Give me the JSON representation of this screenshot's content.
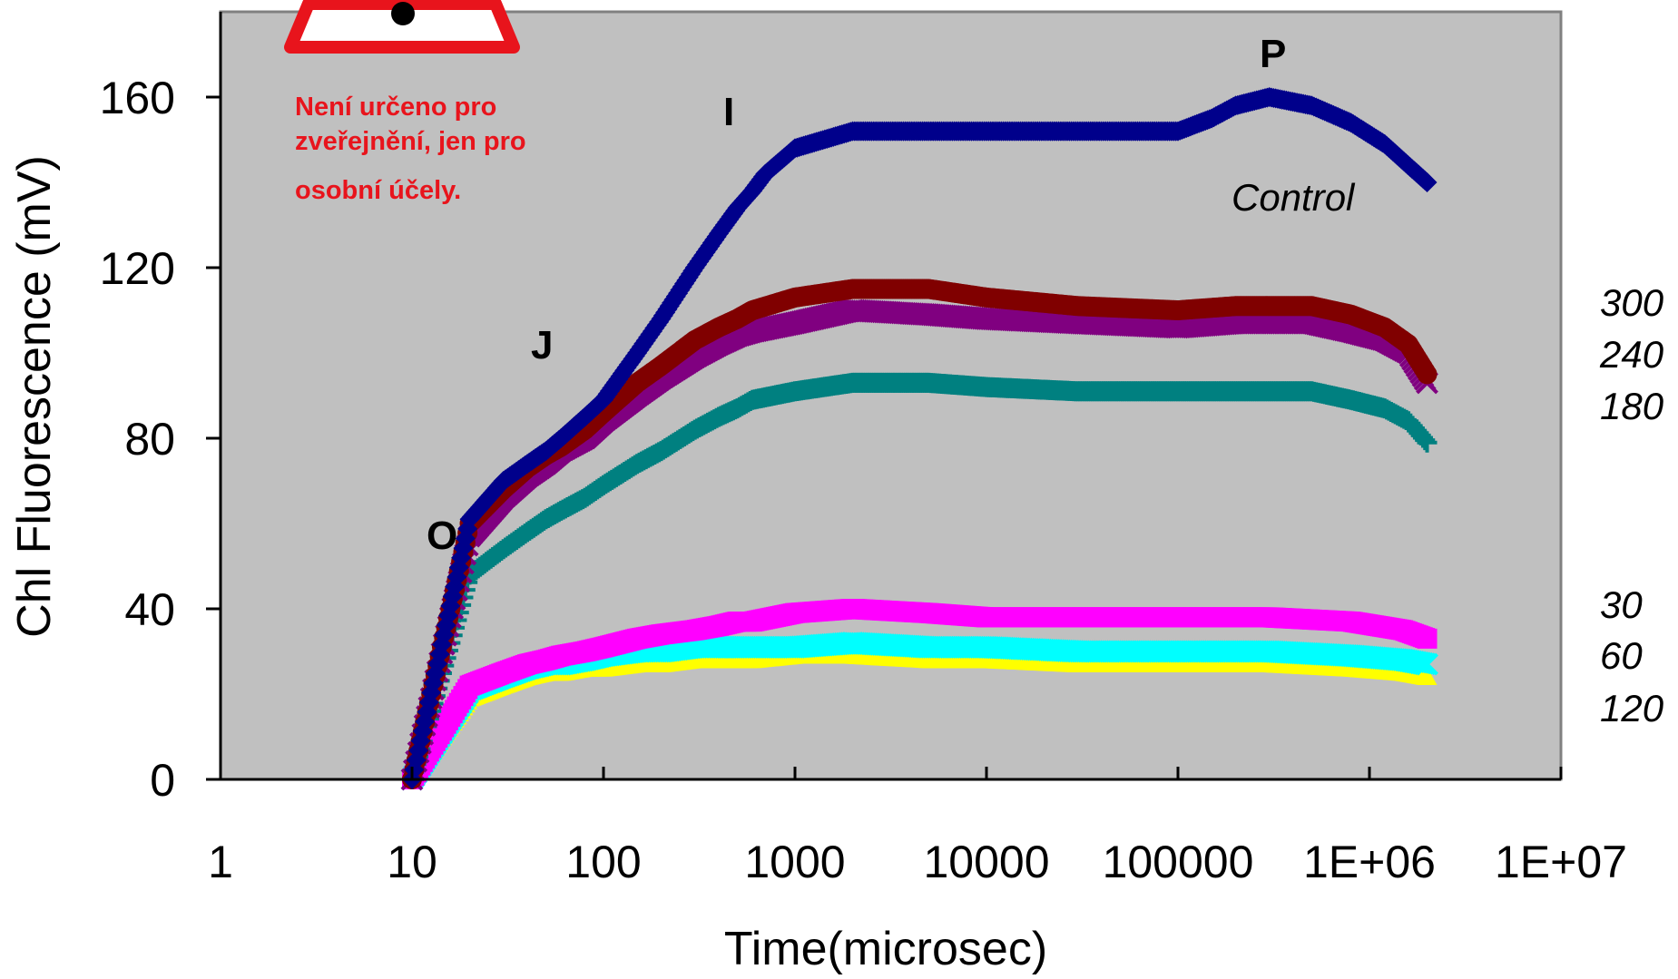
{
  "chart_data": {
    "type": "line",
    "title": "",
    "xlabel": "Time(microsec)",
    "ylabel": "Chl Fluorescence (mV)",
    "x_scale": "log",
    "xlim": [
      1,
      10000000
    ],
    "ylim": [
      0,
      180
    ],
    "x_ticks": [
      1,
      10,
      100,
      1000,
      10000,
      100000,
      1000000,
      10000000
    ],
    "x_tick_labels": [
      "1",
      "10",
      "100",
      "1000",
      "10000",
      "100000",
      "1E+06",
      "1E+07"
    ],
    "y_ticks": [
      0,
      40,
      80,
      120,
      160
    ],
    "y_tick_labels": [
      "0",
      "40",
      "80",
      "120",
      "160"
    ],
    "grid": false,
    "plot_background": "#c0c0c0",
    "phase_labels": [
      {
        "text": "O",
        "x": 12,
        "y": 57
      },
      {
        "text": "J",
        "x": 40,
        "y": 101
      },
      {
        "text": "I",
        "x": 450,
        "y": 156
      },
      {
        "text": "P",
        "x": 300000,
        "y": 169
      }
    ],
    "series": [
      {
        "name": "Control",
        "color": "#00008b",
        "marker": "diamond",
        "x": [
          10,
          20,
          30,
          40,
          50,
          60,
          80,
          100,
          150,
          200,
          300,
          400,
          500,
          600,
          700,
          1000,
          2000,
          5000,
          10000,
          30000,
          100000,
          150000,
          200000,
          300000,
          500000,
          800000,
          1200000,
          2000000
        ],
        "y": [
          0,
          61,
          70,
          74,
          77,
          80,
          85,
          89,
          100,
          108,
          120,
          128,
          134,
          138,
          142,
          148,
          152,
          152,
          152,
          152,
          152,
          155,
          158,
          160,
          158,
          154,
          149,
          140
        ]
      },
      {
        "name": "300",
        "color": "#800000",
        "marker": "circle",
        "x": [
          10,
          20,
          30,
          40,
          50,
          60,
          80,
          100,
          150,
          200,
          300,
          400,
          500,
          600,
          1000,
          2000,
          5000,
          10000,
          30000,
          100000,
          200000,
          500000,
          800000,
          1200000,
          1600000,
          2000000
        ],
        "y": [
          0,
          60,
          68,
          73,
          76,
          78,
          82,
          86,
          93,
          97,
          103,
          106,
          108,
          110,
          113,
          115,
          115,
          113,
          111,
          110,
          111,
          111,
          109,
          106,
          102,
          95
        ]
      },
      {
        "name": "240",
        "color": "#800080",
        "marker": "x",
        "x": [
          10,
          20,
          30,
          40,
          50,
          60,
          80,
          100,
          150,
          200,
          300,
          400,
          500,
          600,
          1000,
          2000,
          5000,
          10000,
          30000,
          100000,
          200000,
          500000,
          800000,
          1200000,
          1600000,
          2000000
        ],
        "y": [
          0,
          57,
          66,
          71,
          74,
          77,
          80,
          84,
          90,
          94,
          99,
          102,
          104,
          105,
          107,
          110,
          109,
          108,
          107,
          106,
          107,
          107,
          105,
          103,
          100,
          93
        ]
      },
      {
        "name": "180",
        "color": "#008080",
        "marker": "plus",
        "x": [
          10,
          20,
          30,
          40,
          50,
          60,
          80,
          100,
          150,
          200,
          300,
          400,
          500,
          600,
          1000,
          2000,
          5000,
          10000,
          30000,
          100000,
          200000,
          500000,
          800000,
          1200000,
          1600000,
          2000000
        ],
        "y": [
          0,
          48,
          54,
          58,
          61,
          63,
          66,
          69,
          74,
          77,
          82,
          85,
          87,
          89,
          91,
          93,
          93,
          92,
          91,
          91,
          91,
          91,
          89,
          87,
          84,
          79
        ]
      },
      {
        "name": "30",
        "color": "#ff00ff",
        "marker": "square",
        "x": [
          10,
          20,
          30,
          40,
          50,
          60,
          80,
          100,
          150,
          200,
          300,
          400,
          500,
          600,
          1000,
          2000,
          5000,
          10000,
          30000,
          100000,
          300000,
          800000,
          1500000,
          2000000
        ],
        "y": [
          0,
          22,
          25,
          27,
          28,
          29,
          30,
          31,
          33,
          34,
          35,
          36,
          37,
          37,
          39,
          40,
          39,
          38,
          38,
          38,
          38,
          37,
          35,
          33
        ]
      },
      {
        "name": "60",
        "color": "#00ffff",
        "marker": "x",
        "x": [
          10,
          20,
          30,
          40,
          50,
          60,
          80,
          100,
          150,
          200,
          300,
          400,
          500,
          600,
          1000,
          2000,
          5000,
          10000,
          30000,
          100000,
          300000,
          800000,
          1500000,
          2000000
        ],
        "y": [
          0,
          21,
          24,
          26,
          27,
          27,
          28,
          29,
          30,
          30,
          31,
          31,
          31,
          31,
          31,
          32,
          31,
          31,
          30,
          30,
          30,
          29,
          28,
          27
        ]
      },
      {
        "name": "120",
        "color": "#ffff00",
        "marker": "triangle",
        "x": [
          10,
          20,
          30,
          40,
          50,
          60,
          80,
          100,
          150,
          200,
          300,
          400,
          500,
          600,
          1000,
          2000,
          5000,
          10000,
          30000,
          100000,
          300000,
          800000,
          1500000,
          2000000
        ],
        "y": [
          0,
          19,
          22,
          24,
          25,
          25,
          26,
          26,
          27,
          27,
          28,
          28,
          28,
          28,
          29,
          29,
          28,
          28,
          27,
          27,
          27,
          26,
          25,
          24
        ]
      }
    ]
  },
  "watermark": {
    "lines": [
      "Není určeno pro",
      "zveřejnění, jen pro",
      "osobní účely."
    ],
    "color": "#e8141c",
    "icon": "warning-triangle-icon"
  }
}
